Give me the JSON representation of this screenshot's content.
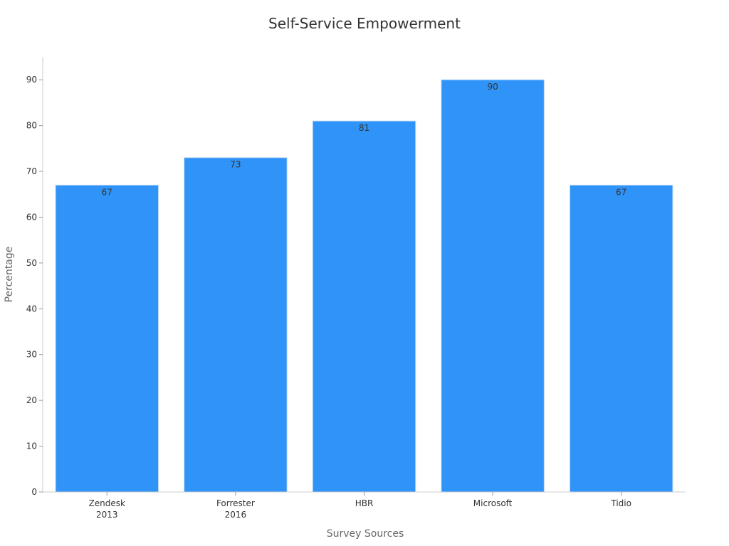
{
  "chart_data": {
    "type": "bar",
    "title": "Self-Service Empowerment",
    "xlabel": "Survey Sources",
    "ylabel": "Percentage",
    "categories": [
      [
        "Zendesk",
        "2013"
      ],
      [
        "Forrester",
        "2016"
      ],
      [
        "HBR"
      ],
      [
        "Microsoft"
      ],
      [
        "Tidio"
      ]
    ],
    "values": [
      67,
      73,
      81,
      90,
      67
    ],
    "ylim": [
      0,
      95
    ],
    "yticks": [
      0,
      10,
      20,
      30,
      40,
      50,
      60,
      70,
      80,
      90
    ],
    "grid": false,
    "legend": "none",
    "bar_color": "#3093f7",
    "bar_edge_color": "#bcd8f5"
  }
}
